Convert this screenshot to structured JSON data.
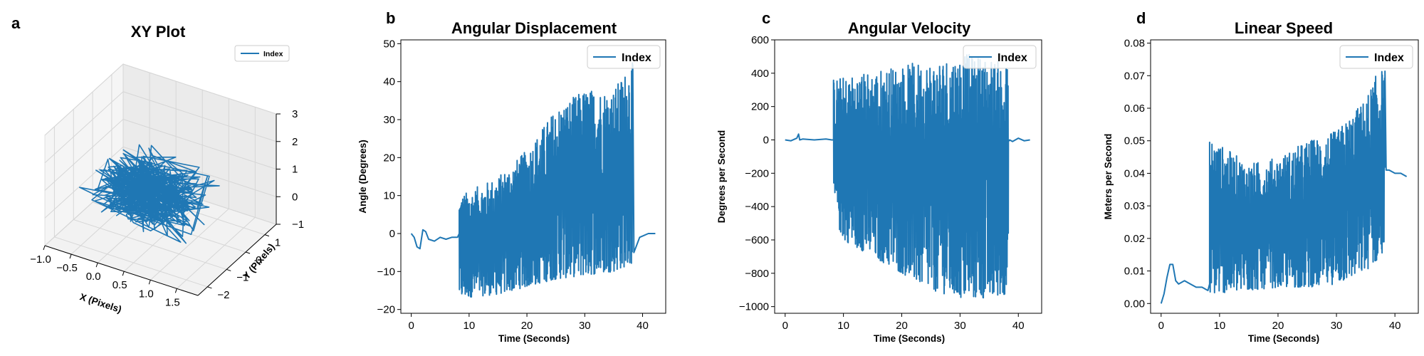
{
  "figure": {
    "series_color": "#1f77b4",
    "panels": [
      {
        "letter": "a",
        "title": "XY Plot",
        "xlabel": "X (Pixels)",
        "ylabel": "Y (Pixels)",
        "legend": "Index"
      },
      {
        "letter": "b",
        "title": "Angular Displacement",
        "xlabel": "Time (Seconds)",
        "ylabel": "Angle (Degrees)",
        "legend": "Index"
      },
      {
        "letter": "c",
        "title": "Angular Velocity",
        "xlabel": "Time (Seconds)",
        "ylabel": "Degrees per Second",
        "legend": "Index"
      },
      {
        "letter": "d",
        "title": "Linear Speed",
        "xlabel": "Time (Seconds)",
        "ylabel": "Meters per Second",
        "legend": "Index"
      }
    ]
  },
  "chart_data": [
    {
      "type": "line3d",
      "title": "XY Plot",
      "xlabel": "X (Pixels)",
      "ylabel": "Y (Pixels)",
      "xticks": [
        "−1.0",
        "−0.5",
        "0.0",
        "0.5",
        "1.0",
        "1.5"
      ],
      "yticks": [
        "−2",
        "−1",
        "0",
        "1"
      ],
      "zticks": [
        "−1",
        "0",
        "1",
        "2",
        "3"
      ],
      "xlim": [
        -1.0,
        1.9
      ],
      "ylim": [
        -2.5,
        1.6
      ],
      "zlim": [
        -1,
        3
      ],
      "series": [
        {
          "name": "Index",
          "description": "dense tangled trajectory centred near x≈0.3, y≈−0.5, z≈0.5"
        }
      ],
      "legend_position": "top-right",
      "grid": true
    },
    {
      "type": "line",
      "title": "Angular Displacement",
      "xlabel": "Time (Seconds)",
      "ylabel": "Angle (Degrees)",
      "xticks": [
        "0",
        "10",
        "20",
        "30",
        "40"
      ],
      "yticks": [
        "−20",
        "−10",
        "0",
        "10",
        "20",
        "30",
        "40",
        "50"
      ],
      "xlim": [
        -1.8,
        44
      ],
      "ylim": [
        -21,
        51
      ],
      "series": [
        {
          "name": "Index",
          "x": [
            0,
            0.5,
            1.0,
            1.5,
            2.0,
            2.5,
            3.0,
            4.0,
            5.0,
            6.0,
            7.0,
            8.0,
            8.3,
            10,
            15,
            20,
            25,
            30,
            35,
            38.2,
            38.5,
            39.5,
            41,
            42.2
          ],
          "y": [
            0,
            -1,
            -3.5,
            -4,
            1,
            0.5,
            -1.5,
            -2,
            -1,
            -1.5,
            -1,
            -1,
            0,
            0,
            0,
            5,
            8,
            10,
            15,
            20,
            -5,
            -1,
            0,
            0
          ],
          "envelope_min": [
            [
              8.3,
              -17
            ],
            [
              15,
              -16
            ],
            [
              20,
              -14
            ],
            [
              25,
              -12
            ],
            [
              30,
              -11
            ],
            [
              35,
              -10
            ],
            [
              38,
              -8
            ]
          ],
          "envelope_max": [
            [
              8.3,
              10
            ],
            [
              15,
              15
            ],
            [
              20,
              22
            ],
            [
              25,
              33
            ],
            [
              30,
              38
            ],
            [
              35,
              38
            ],
            [
              38,
              45
            ]
          ]
        }
      ],
      "legend_position": "top-right",
      "grid": false
    },
    {
      "type": "line",
      "title": "Angular Velocity",
      "xlabel": "Time (Seconds)",
      "ylabel": "Degrees per Second",
      "xticks": [
        "0",
        "10",
        "20",
        "30",
        "40"
      ],
      "yticks": [
        "−1000",
        "−800",
        "−600",
        "−400",
        "−200",
        "0",
        "200",
        "400",
        "600"
      ],
      "xlim": [
        -1.8,
        44
      ],
      "ylim": [
        -1040,
        600
      ],
      "series": [
        {
          "name": "Index",
          "x": [
            0,
            1,
            2,
            2.3,
            2.5,
            3,
            5,
            7,
            8,
            8.3,
            38.5,
            39,
            40,
            41,
            42
          ],
          "y": [
            0,
            -5,
            10,
            35,
            0,
            5,
            0,
            5,
            0,
            0,
            0,
            -10,
            10,
            -5,
            0
          ],
          "envelope_min": [
            [
              8.3,
              -450
            ],
            [
              10,
              -600
            ],
            [
              15,
              -700
            ],
            [
              20,
              -800
            ],
            [
              25,
              -900
            ],
            [
              30,
              -950
            ],
            [
              35,
              -950
            ],
            [
              38.3,
              -920
            ]
          ],
          "envelope_max": [
            [
              8.3,
              370
            ],
            [
              10,
              380
            ],
            [
              15,
              420
            ],
            [
              20,
              450
            ],
            [
              25,
              480
            ],
            [
              30,
              520
            ],
            [
              35,
              500
            ],
            [
              38.3,
              450
            ]
          ]
        }
      ],
      "legend_position": "top-right",
      "grid": false
    },
    {
      "type": "line",
      "title": "Linear Speed",
      "xlabel": "Time (Seconds)",
      "ylabel": "Meters per Second",
      "xticks": [
        "0",
        "10",
        "20",
        "30",
        "40"
      ],
      "yticks": [
        "0.00",
        "0.01",
        "0.02",
        "0.03",
        "0.04",
        "0.05",
        "0.06",
        "0.07",
        "0.08"
      ],
      "xlim": [
        -1.8,
        44
      ],
      "ylim": [
        -0.003,
        0.081
      ],
      "series": [
        {
          "name": "Index",
          "x": [
            0,
            0.5,
            1,
            1.5,
            2,
            2.5,
            3,
            4,
            5,
            6,
            7,
            8,
            8.3,
            38.5,
            39,
            40,
            41,
            42
          ],
          "y": [
            0,
            0.003,
            0.008,
            0.012,
            0.012,
            0.007,
            0.006,
            0.007,
            0.006,
            0.005,
            0.005,
            0.004,
            0.006,
            0.041,
            0.041,
            0.04,
            0.04,
            0.039
          ],
          "envelope_min": [
            [
              8.3,
              0.003
            ],
            [
              15,
              0.004
            ],
            [
              20,
              0.005
            ],
            [
              25,
              0.005
            ],
            [
              30,
              0.006
            ],
            [
              35,
              0.01
            ],
            [
              38,
              0.015
            ]
          ],
          "envelope_max": [
            [
              8.3,
              0.051
            ],
            [
              15,
              0.043
            ],
            [
              20,
              0.045
            ],
            [
              25,
              0.05
            ],
            [
              30,
              0.053
            ],
            [
              35,
              0.063
            ],
            [
              37.2,
              0.072
            ]
          ]
        }
      ],
      "legend_position": "top-right",
      "grid": false
    }
  ]
}
